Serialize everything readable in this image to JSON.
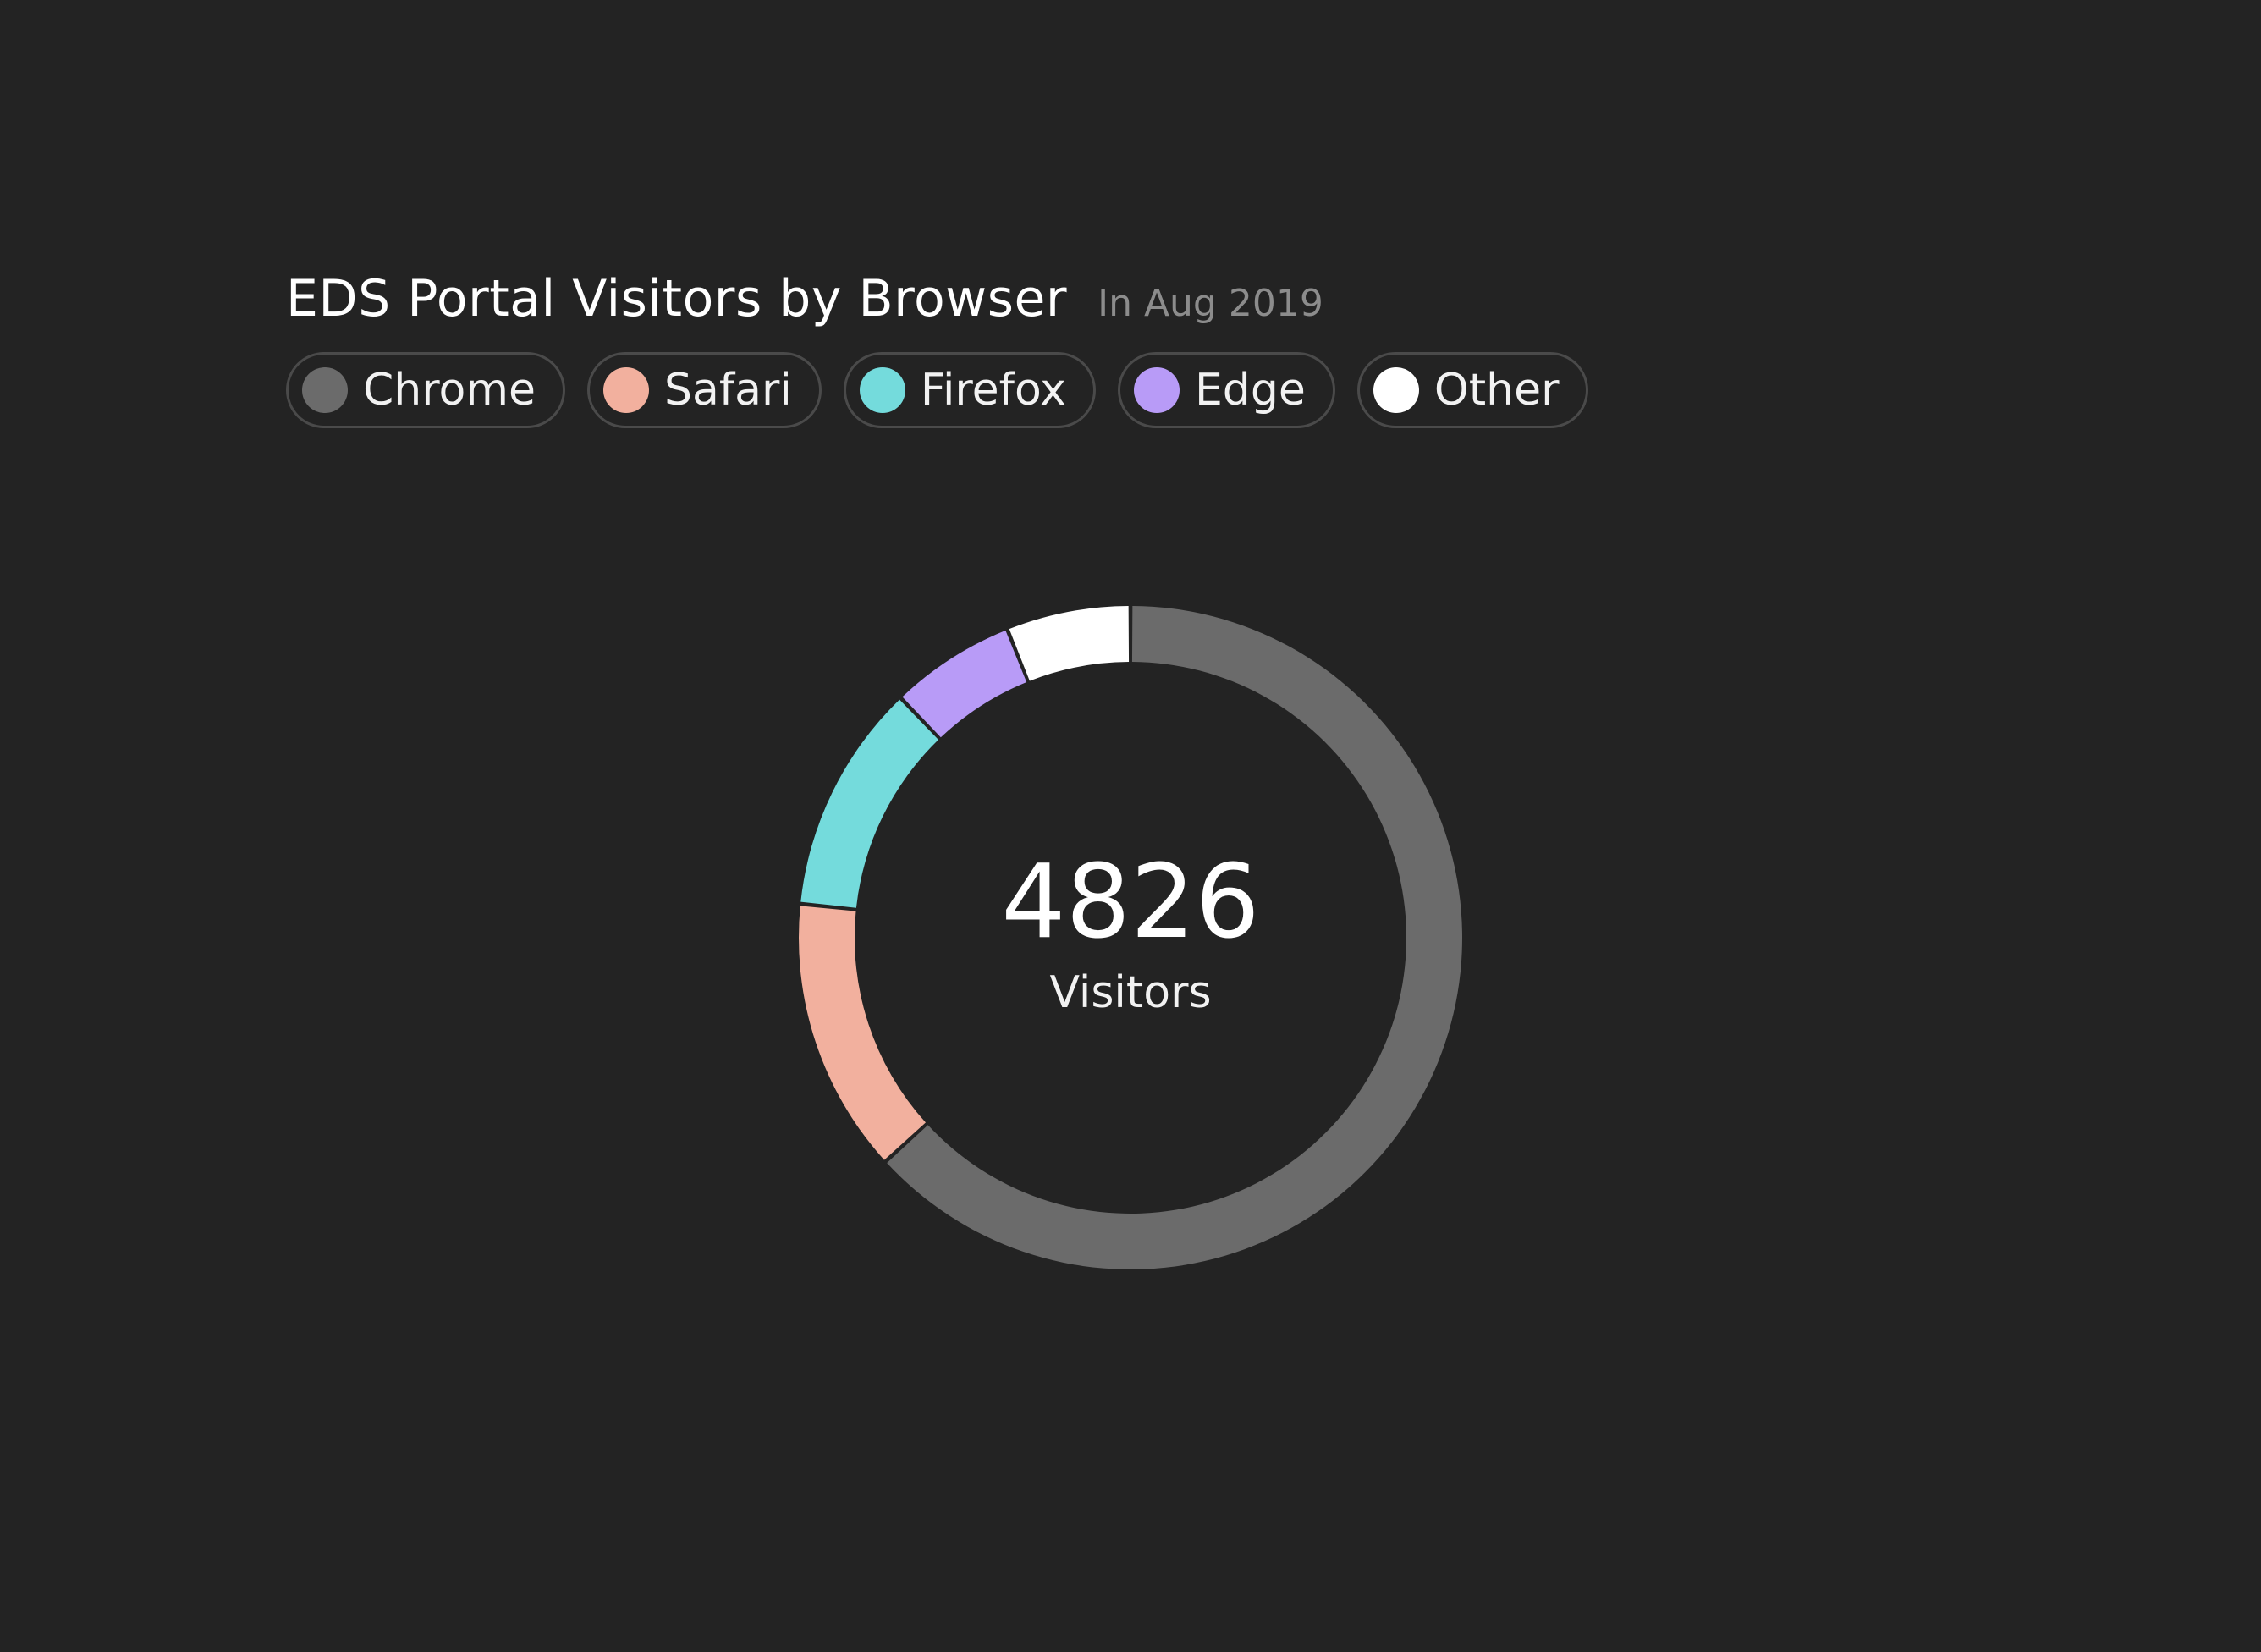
{
  "chart_data": {
    "type": "pie",
    "title": "EDS Portal Visitors by Browser",
    "subtitle": "In Aug 2019",
    "total_value": "4826",
    "total_label": "Visitors",
    "categories": [
      "Chrome",
      "Safari",
      "Firefox",
      "Edge",
      "Other"
    ],
    "values": [
      3051,
      647,
      541,
      295,
      292
    ],
    "colors": [
      "#6b6b6b",
      "#f2b09e",
      "#74dbdc",
      "#b89bf7",
      "#ffffff"
    ],
    "legend_position": "top-left"
  }
}
